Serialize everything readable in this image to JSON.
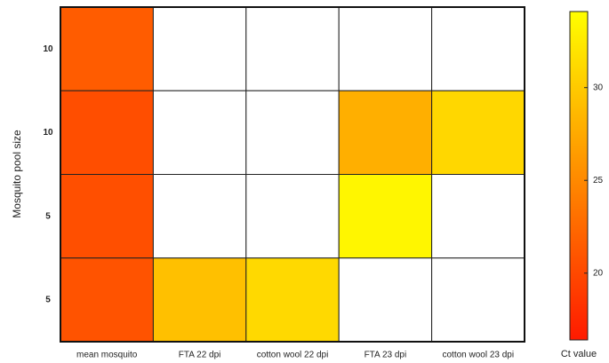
{
  "chart_data": {
    "type": "heatmap",
    "x_categories": [
      "mean mosquito",
      "FTA 22 dpi",
      "cotton wool 22 dpi",
      "FTA 23 dpi",
      "cotton wool 23 dpi"
    ],
    "y_categories": [
      "10",
      "10",
      "5",
      "5"
    ],
    "ylabel": "Mosquito pool size",
    "values": [
      [
        21.5,
        null,
        null,
        null,
        null
      ],
      [
        20.4,
        null,
        null,
        27.9,
        31.0
      ],
      [
        20.5,
        null,
        null,
        33.4,
        null
      ],
      [
        20.8,
        29.2,
        31.2,
        null,
        null
      ]
    ],
    "colormap": [
      "#ff1a00",
      "#ffff00"
    ],
    "clim": [
      16.4,
      34.1
    ],
    "cticks": [
      20,
      25,
      30
    ],
    "colorbar_label": "Ct value"
  }
}
